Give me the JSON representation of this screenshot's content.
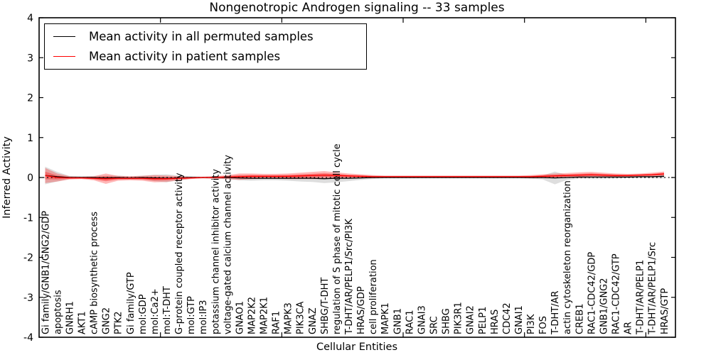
{
  "title": "Nongenotropic Androgen signaling -- 33 samples",
  "legend": {
    "items": [
      {
        "label": "Mean activity in all permuted samples",
        "color": "#000000"
      },
      {
        "label": "Mean activity in patient samples",
        "color": "#ff0000"
      }
    ]
  },
  "axes": {
    "ylabel": "Inferred Activity",
    "xlabel": "Cellular Entities",
    "y_ticks": [
      "4",
      "3",
      "2",
      "1",
      "0",
      "-1",
      "-2",
      "-3",
      "-4"
    ]
  },
  "colors": {
    "permuted_line": "#000000",
    "patient_line": "#ff0000",
    "permuted_band": "#b0b0b0",
    "patient_band": "#ff0000",
    "zero_line": "#000000"
  },
  "chart_data": {
    "type": "line",
    "title": "Nongenotropic Androgen signaling -- 33 samples",
    "xlabel": "Cellular Entities",
    "ylabel": "Inferred Activity",
    "ylim": [
      -4,
      4
    ],
    "x_tick_positions": [
      10,
      20,
      30,
      40,
      50
    ],
    "grid": false,
    "legend_position": "upper left",
    "zero_reference_line": 0,
    "categories": [
      "Gi family/GNB1/GNG2/GDP",
      "apoptosis",
      "GNRH1",
      "AKT1",
      "cAMP biosynthetic process",
      "GNG2",
      "PTK2",
      "Gi family/GTP",
      "mol:GDP",
      "mol:Ca2+",
      "mol:T-DHT",
      "G-protein coupled receptor activity",
      "mol:GTP",
      "mol:IP3",
      "potassium channel inhibitor activity",
      "voltage-gated calcium channel activity",
      "GNAO1",
      "MAP2K2",
      "MAP2K1",
      "RAF1",
      "MAPK3",
      "PIK3CA",
      "GNAZ",
      "SHBG/T-DHT",
      "regulation of S phase of mitotic cell cycle",
      "T-DHT/AR/PELP1/Src/PI3K",
      "HRAS/GDP",
      "cell proliferation",
      "MAPK1",
      "GNB1",
      "RAC1",
      "GNAI3",
      "SRC",
      "SHBG",
      "PIK3R1",
      "GNAI2",
      "PELP1",
      "HRAS",
      "CDC42",
      "GNAI1",
      "PI3K",
      "FOS",
      "T-DHT/AR",
      "actin cytoskeleton reorganization",
      "CREB1",
      "RAC1-CDC42/GDP",
      "GNB1/GNG2",
      "RAC1-CDC42/GTP",
      "AR",
      "T-DHT/AR/PELP1",
      "T-DHT/AR/PELP1/Src",
      "HRAS/GTP"
    ],
    "series": [
      {
        "name": "Mean activity in all permuted samples",
        "color": "#000000",
        "values": [
          0.05,
          0.02,
          0,
          0,
          0,
          -0.01,
          0,
          -0.01,
          0,
          -0.01,
          -0.02,
          -0.01,
          0,
          0,
          0,
          0,
          -0.01,
          -0.02,
          -0.02,
          -0.02,
          -0.02,
          -0.02,
          -0.02,
          -0.03,
          -0.02,
          -0.02,
          -0.01,
          0,
          0,
          0,
          0,
          0,
          0,
          0,
          0,
          0,
          0,
          0,
          0,
          0,
          0,
          0,
          -0.01,
          0,
          0.01,
          0.01,
          0.01,
          0.01,
          0.01,
          0.02,
          0.02,
          0.03
        ]
      },
      {
        "name": "Mean activity in patient samples",
        "color": "#ff0000",
        "values": [
          0.05,
          0.0,
          -0.01,
          -0.01,
          -0.02,
          -0.03,
          -0.02,
          -0.02,
          -0.02,
          -0.03,
          -0.03,
          -0.02,
          -0.01,
          0,
          0,
          0.01,
          0.02,
          0.03,
          0.03,
          0.03,
          0.03,
          0.04,
          0.05,
          0.06,
          0.05,
          0.04,
          0.03,
          0.02,
          0.02,
          0.02,
          0.02,
          0.02,
          0.02,
          0.02,
          0.02,
          0.02,
          0.02,
          0.02,
          0.02,
          0.02,
          0.02,
          0.03,
          0.04,
          0.05,
          0.06,
          0.07,
          0.06,
          0.05,
          0.05,
          0.06,
          0.07,
          0.09
        ]
      }
    ],
    "bands": [
      {
        "name": "permuted-spread",
        "center_series": 0,
        "color": "#b0b0b0",
        "halfwidths": [
          0.22,
          0.12,
          0.04,
          0.03,
          0.04,
          0.06,
          0.05,
          0.04,
          0.05,
          0.08,
          0.1,
          0.06,
          0.03,
          0.02,
          0.03,
          0.04,
          0.06,
          0.06,
          0.05,
          0.05,
          0.06,
          0.08,
          0.09,
          0.11,
          0.1,
          0.07,
          0.05,
          0.04,
          0.02,
          0.02,
          0.02,
          0.02,
          0.02,
          0.02,
          0.02,
          0.02,
          0.02,
          0.02,
          0.02,
          0.02,
          0.03,
          0.05,
          0.16,
          0.06,
          0.04,
          0.05,
          0.05,
          0.04,
          0.03,
          0.03,
          0.04,
          0.05
        ]
      },
      {
        "name": "patient-spread",
        "center_series": 1,
        "color": "#ff0000",
        "halfwidths": [
          0.19,
          0.1,
          0.04,
          0.03,
          0.05,
          0.13,
          0.06,
          0.05,
          0.06,
          0.09,
          0.08,
          0.05,
          0.03,
          0.02,
          0.03,
          0.05,
          0.08,
          0.07,
          0.06,
          0.06,
          0.07,
          0.08,
          0.09,
          0.1,
          0.08,
          0.06,
          0.05,
          0.04,
          0.03,
          0.03,
          0.03,
          0.03,
          0.03,
          0.03,
          0.03,
          0.03,
          0.03,
          0.03,
          0.03,
          0.03,
          0.04,
          0.05,
          0.06,
          0.06,
          0.07,
          0.07,
          0.06,
          0.05,
          0.04,
          0.04,
          0.05,
          0.06
        ]
      }
    ]
  }
}
